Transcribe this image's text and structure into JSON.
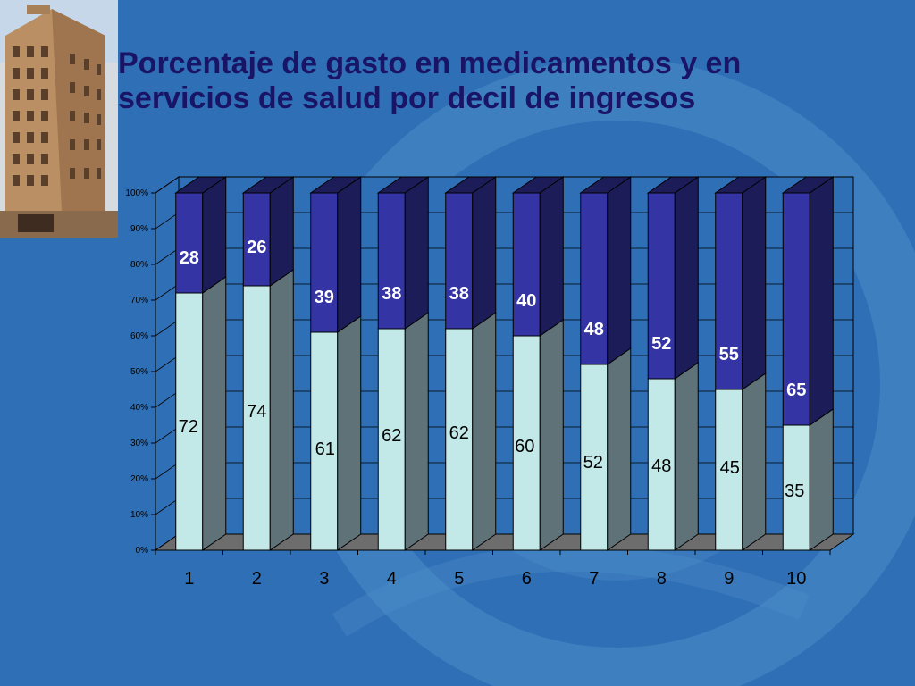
{
  "slide": {
    "title_line1": "Porcentaje de gasto en medicamentos y en",
    "title_line2": "servicios de salud por decil de ingresos"
  },
  "colors": {
    "background": "#2f6fb5",
    "title": "#1a1466",
    "series_bottom_front": "#c3e8e8",
    "series_bottom_side": "#5f7278",
    "series_top_front": "#3434a4",
    "series_top_side": "#1c1c58",
    "floor": "#6d6d6d"
  },
  "chart_data": {
    "type": "bar",
    "stacked": true,
    "percent_stacked": true,
    "three_d": true,
    "categories": [
      "1",
      "2",
      "3",
      "4",
      "5",
      "6",
      "7",
      "8",
      "9",
      "10"
    ],
    "series": [
      {
        "values": [
          72,
          74,
          61,
          62,
          62,
          60,
          52,
          48,
          45,
          35
        ],
        "color": "#c3e8e8"
      },
      {
        "values": [
          28,
          26,
          39,
          38,
          38,
          40,
          48,
          52,
          55,
          65
        ],
        "color": "#3434a4"
      }
    ],
    "y_ticks": [
      "0%",
      "10%",
      "20%",
      "30%",
      "40%",
      "50%",
      "60%",
      "70%",
      "80%",
      "90%",
      "100%"
    ],
    "ylim": [
      0,
      100
    ],
    "grid": true,
    "legend": "none"
  }
}
